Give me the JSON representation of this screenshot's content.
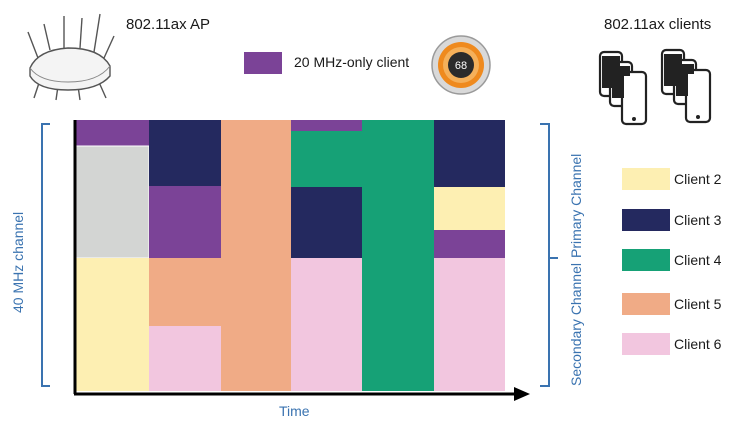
{
  "header": {
    "ap_label": "802.11ax AP",
    "clients_label": "802.11ax clients",
    "legend_20mhz_label": "20 MHz-only client",
    "thermostat_value": "68"
  },
  "axes": {
    "x_label": "Time",
    "left_label": "40 MHz channel",
    "right_secondary_label": "Secondary Channel",
    "right_primary_label": "Primary Channel"
  },
  "legend": [
    {
      "label": "Client 2",
      "color": "#fdefb2"
    },
    {
      "label": "Client 3",
      "color": "#24295f"
    },
    {
      "label": "Client 4",
      "color": "#16a176"
    },
    {
      "label": "Client 5",
      "color": "#f0ab86"
    },
    {
      "label": "Client 6",
      "color": "#f2c6df"
    }
  ],
  "colors": {
    "client_20mhz": "#7b4397",
    "idle_gray": "#d3d5d3",
    "accent_blue": "#3a73b0"
  },
  "icons": [
    "wifi-access-point-icon",
    "thermostat-icon",
    "smartphone-icon"
  ]
}
